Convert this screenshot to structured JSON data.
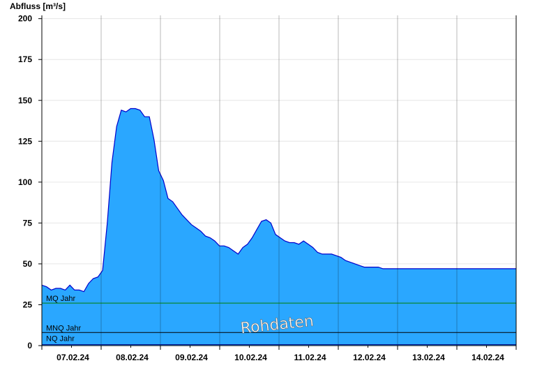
{
  "colors": {
    "fill": "#2aa7ff",
    "line": "#0000cc",
    "mq_line": "#008000",
    "mnq_line": "#000000",
    "nq_line": "#000080",
    "grid": "#e6e6e6",
    "axis": "#000000"
  },
  "watermark": "Rohdaten",
  "chart_data": {
    "type": "area",
    "ylabel": "Abfluss [m³/s]",
    "ylim": [
      0,
      202
    ],
    "yticks": [
      0,
      25,
      50,
      75,
      100,
      125,
      150,
      175,
      200
    ],
    "grid": "horizontal",
    "xlim": [
      "2024-02-06T00:00",
      "2024-02-14T00:00"
    ],
    "x_day_labels": [
      "07.02.24",
      "08.02.24",
      "09.02.24",
      "10.02.24",
      "11.02.24",
      "12.02.24",
      "13.02.24",
      "14.02.24"
    ],
    "reference_lines": [
      {
        "label": "MQ Jahr",
        "value": 26
      },
      {
        "label": "MNQ Jahr",
        "value": 8
      },
      {
        "label": "NQ Jahr",
        "value": 0.6
      }
    ],
    "series": [
      {
        "x": [
          "2024-02-06T00:00",
          "2024-02-06T02:00",
          "2024-02-06T04:00",
          "2024-02-06T06:00",
          "2024-02-06T08:00",
          "2024-02-06T10:00",
          "2024-02-06T12:00",
          "2024-02-06T14:00",
          "2024-02-06T16:00",
          "2024-02-06T18:00",
          "2024-02-06T20:00",
          "2024-02-06T22:00",
          "2024-02-07T00:00",
          "2024-02-07T02:00",
          "2024-02-07T04:00",
          "2024-02-07T06:00",
          "2024-02-07T08:00",
          "2024-02-07T10:00",
          "2024-02-07T12:00",
          "2024-02-07T14:00",
          "2024-02-07T16:00",
          "2024-02-07T18:00",
          "2024-02-07T20:00",
          "2024-02-07T22:00",
          "2024-02-08T00:00",
          "2024-02-08T02:00",
          "2024-02-08T04:00",
          "2024-02-08T06:00",
          "2024-02-08T08:00",
          "2024-02-08T10:00",
          "2024-02-08T12:00",
          "2024-02-08T14:00",
          "2024-02-08T16:00",
          "2024-02-08T18:00",
          "2024-02-08T20:00",
          "2024-02-08T22:00",
          "2024-02-09T00:00",
          "2024-02-09T02:00",
          "2024-02-09T04:00",
          "2024-02-09T06:00",
          "2024-02-09T08:00",
          "2024-02-09T10:00",
          "2024-02-09T12:00",
          "2024-02-09T14:00",
          "2024-02-09T16:00",
          "2024-02-09T18:00",
          "2024-02-09T20:00",
          "2024-02-09T22:00",
          "2024-02-10T00:00",
          "2024-02-10T02:00",
          "2024-02-10T04:00",
          "2024-02-10T06:00",
          "2024-02-10T08:00",
          "2024-02-10T10:00",
          "2024-02-10T12:00",
          "2024-02-10T14:00",
          "2024-02-10T16:00",
          "2024-02-10T18:00",
          "2024-02-10T20:00",
          "2024-02-10T22:00",
          "2024-02-11T00:00",
          "2024-02-11T02:00",
          "2024-02-11T04:00",
          "2024-02-11T06:00",
          "2024-02-11T08:00",
          "2024-02-11T10:00",
          "2024-02-11T12:00",
          "2024-02-11T14:00",
          "2024-02-11T16:00",
          "2024-02-11T18:00",
          "2024-02-11T20:00",
          "2024-02-11T22:00",
          "2024-02-12T00:00",
          "2024-02-12T02:00",
          "2024-02-12T04:00",
          "2024-02-12T06:00",
          "2024-02-12T08:00",
          "2024-02-12T10:00",
          "2024-02-12T12:00",
          "2024-02-12T14:00",
          "2024-02-12T16:00",
          "2024-02-12T18:00",
          "2024-02-12T20:00",
          "2024-02-12T22:00",
          "2024-02-13T00:00",
          "2024-02-13T02:00",
          "2024-02-13T04:00",
          "2024-02-13T06:00",
          "2024-02-13T08:00",
          "2024-02-13T10:00",
          "2024-02-13T12:00",
          "2024-02-13T14:00",
          "2024-02-13T16:00",
          "2024-02-13T18:00",
          "2024-02-13T20:00",
          "2024-02-13T22:00",
          "2024-02-14T00:00"
        ],
        "values": [
          37,
          36,
          34,
          35,
          35,
          34,
          37,
          34,
          34,
          33,
          38,
          41,
          42,
          46,
          75,
          112,
          134,
          144,
          143,
          145,
          145,
          144,
          140,
          140,
          126,
          107,
          101,
          90,
          88,
          84,
          80,
          77,
          74,
          72,
          70,
          67,
          66,
          64,
          61,
          61,
          60,
          58,
          56,
          60,
          62,
          66,
          71,
          76,
          77,
          75,
          68,
          66,
          64,
          63,
          63,
          62,
          64,
          62,
          60,
          57,
          56,
          56,
          56,
          55,
          54,
          52,
          51,
          50,
          49,
          48,
          48,
          48,
          48,
          47,
          47,
          47,
          47,
          47,
          47,
          47,
          47,
          47,
          47,
          47,
          47,
          47,
          47,
          47,
          47,
          47,
          47,
          47,
          47,
          47,
          47,
          47,
          47
        ]
      }
    ]
  }
}
